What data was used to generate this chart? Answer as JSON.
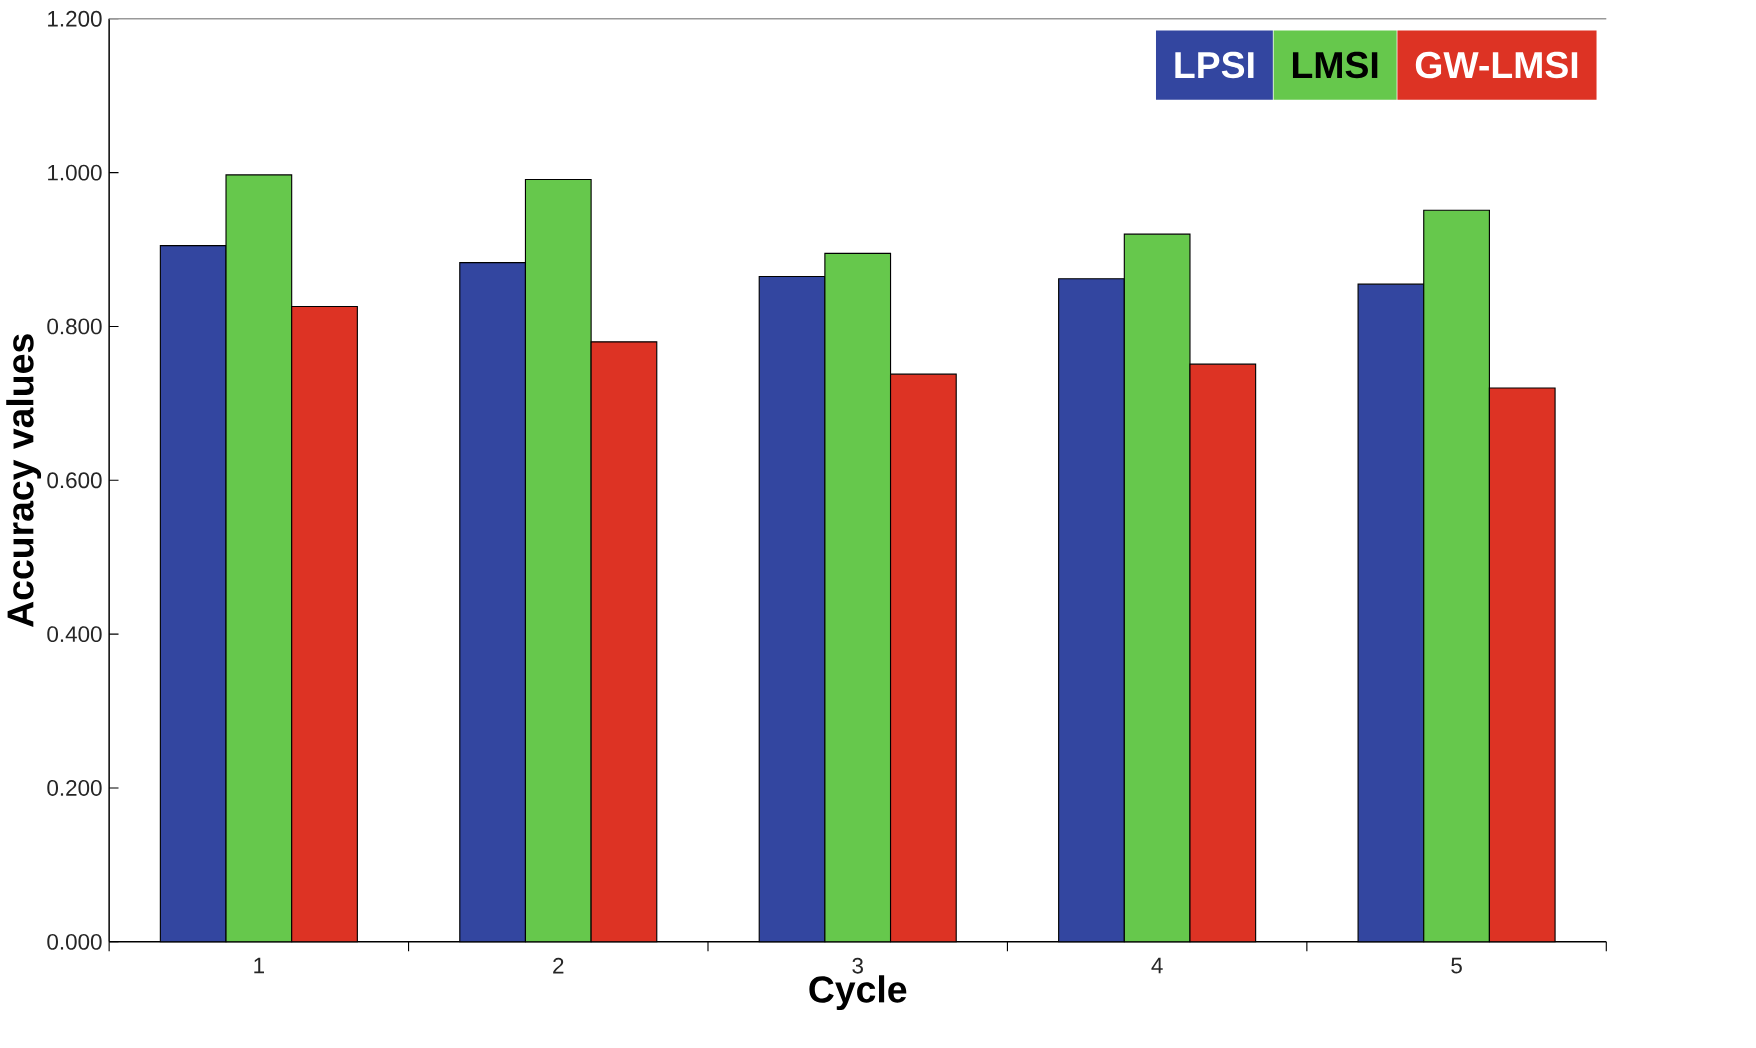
{
  "chart_data": {
    "type": "bar",
    "xlabel": "Cycle",
    "ylabel": "Accuracy  values",
    "categories": [
      "1",
      "2",
      "3",
      "4",
      "5"
    ],
    "series": [
      {
        "name": "LPSI",
        "color": "#3346a0",
        "values": [
          0.905,
          0.883,
          0.865,
          0.862,
          0.855
        ]
      },
      {
        "name": "LMSI",
        "color": "#66c84c",
        "values": [
          0.997,
          0.991,
          0.895,
          0.92,
          0.951
        ]
      },
      {
        "name": "GW-LMSI",
        "color": "#dd3324",
        "values": [
          0.826,
          0.78,
          0.738,
          0.751,
          0.72
        ]
      }
    ],
    "ylim": [
      0,
      1.2
    ],
    "yticks": [
      {
        "value": 0,
        "label": "0.000"
      },
      {
        "value": 0.2,
        "label": "0.200"
      },
      {
        "value": 0.4,
        "label": "0.400"
      },
      {
        "value": 0.6,
        "label": "0.600"
      },
      {
        "value": 0.8,
        "label": "0.800"
      },
      {
        "value": 1.0,
        "label": "1.000"
      },
      {
        "value": 1.2,
        "label": "1.200"
      }
    ],
    "grid": false,
    "legend": "top right"
  }
}
